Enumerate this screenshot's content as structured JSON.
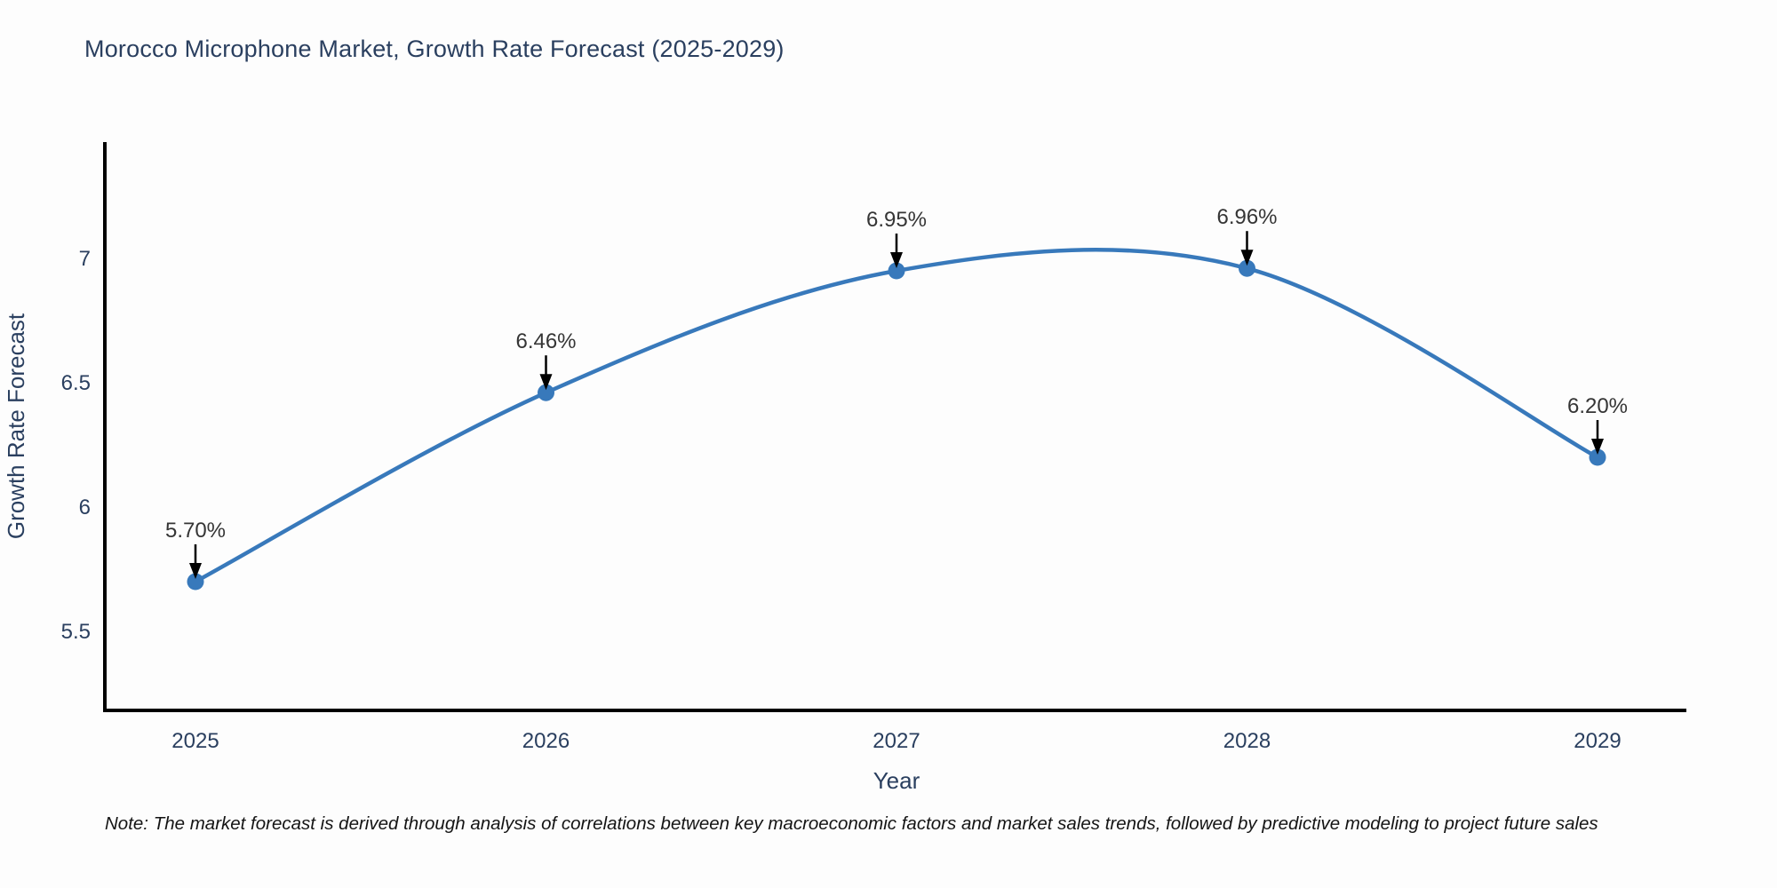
{
  "chart": {
    "title": "Morocco Microphone Market, Growth Rate Forecast (2025-2029)",
    "note": "Note: The market forecast is derived through analysis of correlations between key macroeconomic factors and market sales trends, followed by predictive modeling to project future sales"
  },
  "chart_data": {
    "type": "line",
    "line_shape": "spline",
    "title": "Morocco Microphone Market, Growth Rate Forecast (2025-2029)",
    "xlabel": "Year",
    "ylabel": "Growth Rate Forecast",
    "x": [
      2025,
      2026,
      2027,
      2028,
      2029
    ],
    "values": [
      5.7,
      6.46,
      6.95,
      6.96,
      6.2
    ],
    "point_labels": [
      "5.70%",
      "6.46%",
      "6.95%",
      "6.96%",
      "6.20%"
    ],
    "x_tick_labels": [
      "2025",
      "2026",
      "2027",
      "2028",
      "2029"
    ],
    "y_ticks": [
      {
        "value": 5.5,
        "label": "5.5"
      },
      {
        "value": 6.0,
        "label": "6"
      },
      {
        "value": 6.5,
        "label": "6.5"
      },
      {
        "value": 7.0,
        "label": "7"
      }
    ],
    "ylim": [
      5.18,
      7.47
    ],
    "grid": false,
    "legend": "none",
    "markers": true,
    "annotations_have_arrows": true,
    "colors": {
      "line": "#3879bb",
      "marker": "#3879bb",
      "axis": "#000000",
      "tick_text": "#2a3f5f",
      "axis_title_text": "#2a3f5f",
      "title_text": "#2a3f5f",
      "annotation_text": "#353535",
      "arrow": "#000000",
      "background": "#fdfdfd"
    }
  }
}
